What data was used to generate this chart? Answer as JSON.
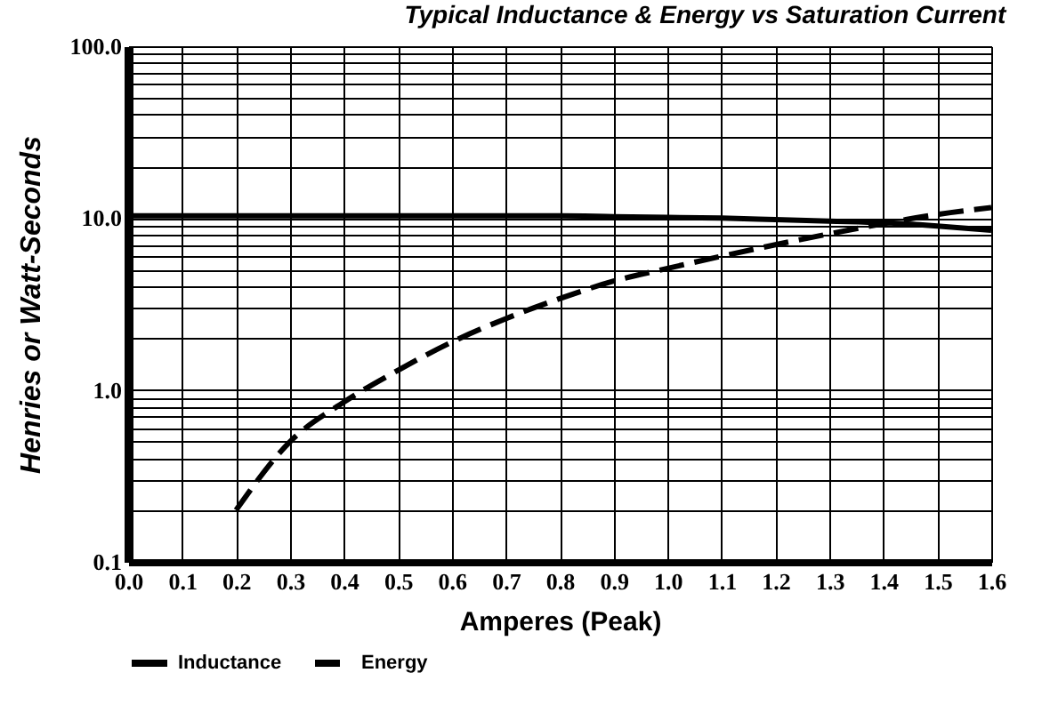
{
  "chart_data": {
    "type": "line",
    "title": "Typical Inductance & Energy vs Saturation Current",
    "xlabel": "Amperes (Peak)",
    "ylabel": "Henries or Watt-Seconds",
    "log": "y",
    "grid": true,
    "legend": "bottom",
    "xlim": [
      0,
      1.6
    ],
    "xticks": [
      {
        "value": 0,
        "label": "0.0"
      },
      {
        "value": 0.1,
        "label": "0.1"
      },
      {
        "value": 0.2,
        "label": "0.2"
      },
      {
        "value": 0.3,
        "label": "0.3"
      },
      {
        "value": 0.4,
        "label": "0.4"
      },
      {
        "value": 0.5,
        "label": "0.5"
      },
      {
        "value": 0.6,
        "label": "0.6"
      },
      {
        "value": 0.7,
        "label": "0.7"
      },
      {
        "value": 0.8,
        "label": "0.8"
      },
      {
        "value": 0.9,
        "label": "0.9"
      },
      {
        "value": 1,
        "label": "1.0"
      },
      {
        "value": 1.1,
        "label": "1.1"
      },
      {
        "value": 1.2,
        "label": "1.2"
      },
      {
        "value": 1.3,
        "label": "1.3"
      },
      {
        "value": 1.4,
        "label": "1.4"
      },
      {
        "value": 1.5,
        "label": "1.5"
      },
      {
        "value": 1.6,
        "label": "1.6"
      }
    ],
    "ylim": [
      0.1,
      100
    ],
    "yticks": [
      {
        "value": 0.1,
        "label": "0.1"
      },
      {
        "value": 0.2,
        "label": null
      },
      {
        "value": 0.3,
        "label": null
      },
      {
        "value": 0.4,
        "label": null
      },
      {
        "value": 0.5,
        "label": null
      },
      {
        "value": 0.6,
        "label": null
      },
      {
        "value": 0.7,
        "label": null
      },
      {
        "value": 0.8,
        "label": null
      },
      {
        "value": 0.9,
        "label": null
      },
      {
        "value": 1,
        "label": "1.0"
      },
      {
        "value": 2,
        "label": null
      },
      {
        "value": 3,
        "label": null
      },
      {
        "value": 4,
        "label": null
      },
      {
        "value": 5,
        "label": null
      },
      {
        "value": 6,
        "label": null
      },
      {
        "value": 7,
        "label": null
      },
      {
        "value": 8,
        "label": null
      },
      {
        "value": 9,
        "label": null
      },
      {
        "value": 10,
        "label": "10.0"
      },
      {
        "value": 20,
        "label": null
      },
      {
        "value": 30,
        "label": null
      },
      {
        "value": 40,
        "label": null
      },
      {
        "value": 50,
        "label": null
      },
      {
        "value": 60,
        "label": null
      },
      {
        "value": 70,
        "label": null
      },
      {
        "value": 80,
        "label": null
      },
      {
        "value": 90,
        "label": null
      },
      {
        "value": 100,
        "label": "100.0"
      }
    ],
    "series": [
      {
        "name": "Inductance",
        "color": "#000000",
        "line_style": "solid",
        "x": [
          0,
          0.1,
          0.2,
          0.3,
          0.4,
          0.5,
          0.6,
          0.7,
          0.8,
          0.9,
          1.0,
          1.1,
          1.2,
          1.3,
          1.4,
          1.5,
          1.6
        ],
        "values": [
          10.3,
          10.3,
          10.3,
          10.3,
          10.3,
          10.3,
          10.3,
          10.3,
          10.3,
          10.2,
          10.1,
          10.0,
          9.8,
          9.6,
          9.4,
          9.0,
          8.5
        ]
      },
      {
        "name": "Energy",
        "color": "#000000",
        "line_style": "dashed",
        "x": [
          0.2,
          0.3,
          0.4,
          0.5,
          0.6,
          0.7,
          0.8,
          0.9,
          1.0,
          1.1,
          1.2,
          1.3,
          1.4,
          1.5,
          1.6
        ],
        "values": [
          0.2,
          0.5,
          0.85,
          1.3,
          1.9,
          2.6,
          3.4,
          4.3,
          5.1,
          6.0,
          7.0,
          8.1,
          9.3,
          10.5,
          11.5
        ]
      }
    ]
  }
}
